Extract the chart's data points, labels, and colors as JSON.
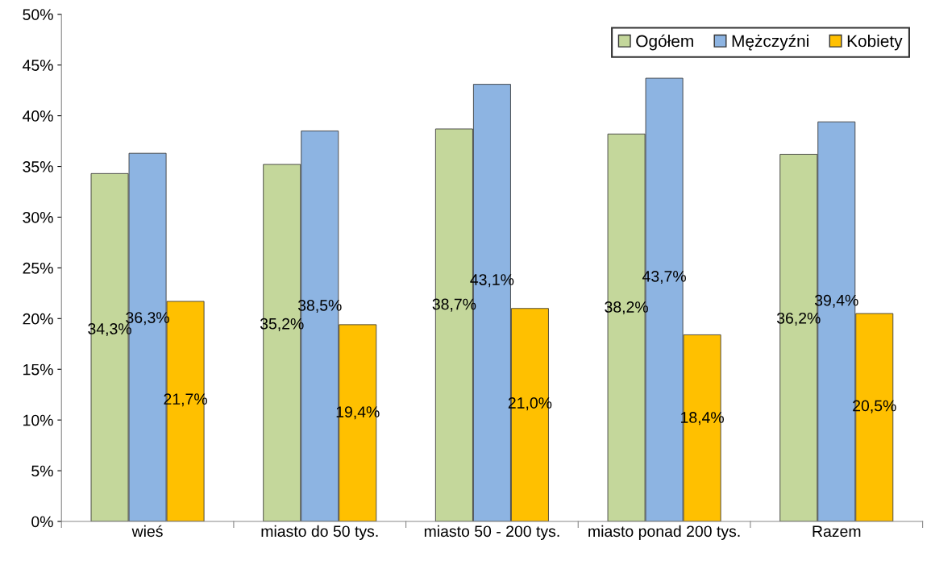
{
  "chart_data": {
    "type": "bar",
    "categories": [
      "wieś",
      "miasto do 50 tys.",
      "miasto 50 - 200 tys.",
      "miasto ponad 200 tys.",
      "Razem"
    ],
    "series": [
      {
        "name": "Ogółem",
        "color": "#c4d79b",
        "values": [
          34.3,
          35.2,
          38.7,
          38.2,
          36.2
        ],
        "value_labels": [
          "34,3%",
          "35,2%",
          "38,7%",
          "38,2%",
          "36,2%"
        ]
      },
      {
        "name": "Mężczyźni",
        "color": "#8db4e2",
        "values": [
          36.3,
          38.5,
          43.1,
          43.7,
          39.4
        ],
        "value_labels": [
          "36,3%",
          "38,5%",
          "43,1%",
          "43,7%",
          "39,4%"
        ]
      },
      {
        "name": "Kobiety",
        "color": "#ffc000",
        "values": [
          21.7,
          19.4,
          21.0,
          18.4,
          20.5
        ],
        "value_labels": [
          "21,7%",
          "19,4%",
          "21,0%",
          "18,4%",
          "20,5%"
        ]
      }
    ],
    "ylim": [
      0,
      50
    ],
    "yticks": [
      {
        "value": 0,
        "label": "0%"
      },
      {
        "value": 5,
        "label": "5%"
      },
      {
        "value": 10,
        "label": "10%"
      },
      {
        "value": 15,
        "label": "15%"
      },
      {
        "value": 20,
        "label": "20%"
      },
      {
        "value": 25,
        "label": "25%"
      },
      {
        "value": 30,
        "label": "30%"
      },
      {
        "value": 35,
        "label": "35%"
      },
      {
        "value": 40,
        "label": "40%"
      },
      {
        "value": 45,
        "label": "45%"
      },
      {
        "value": 50,
        "label": "50%"
      }
    ],
    "grid": false,
    "legend": "top right"
  }
}
